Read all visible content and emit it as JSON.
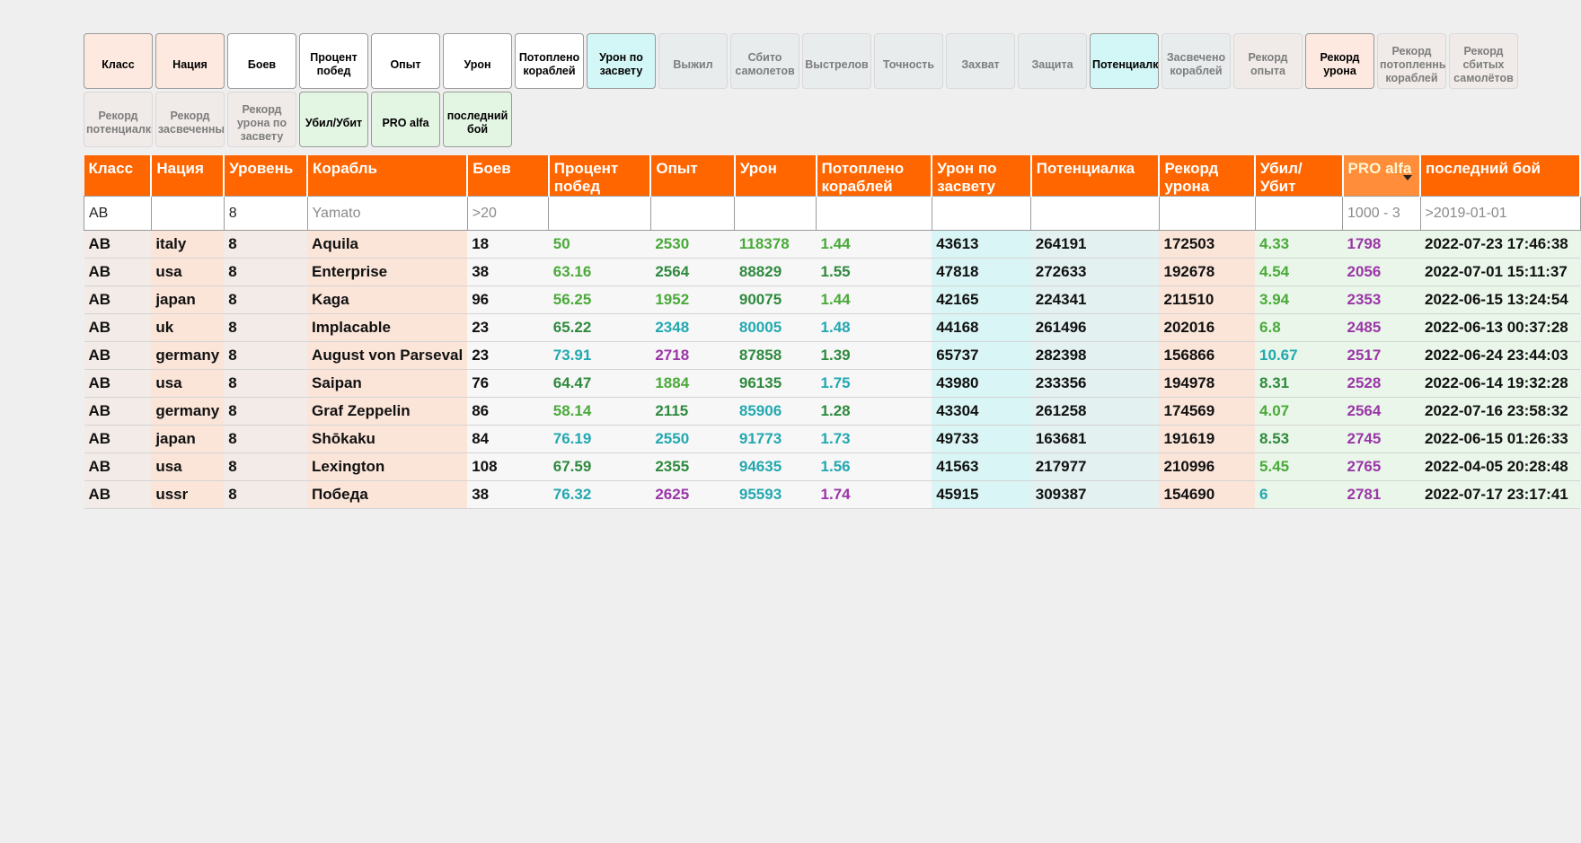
{
  "toggles": [
    {
      "label": "Класс",
      "on": true,
      "style": "peach"
    },
    {
      "label": "Нация",
      "on": true,
      "style": "peach"
    },
    {
      "label": "Боев",
      "on": true,
      "style": "white"
    },
    {
      "label": "Процент побед",
      "on": true,
      "style": "white"
    },
    {
      "label": "Опыт",
      "on": true,
      "style": "white"
    },
    {
      "label": "Урон",
      "on": true,
      "style": "white"
    },
    {
      "label": "Потоплено кораблей",
      "on": true,
      "style": "white"
    },
    {
      "label": "Урон по засвету",
      "on": true,
      "style": "cyan"
    },
    {
      "label": "Выжил",
      "on": false,
      "style": "off"
    },
    {
      "label": "Сбито самолетов",
      "on": false,
      "style": "off"
    },
    {
      "label": "Выстрелов",
      "on": false,
      "style": "off"
    },
    {
      "label": "Точность",
      "on": false,
      "style": "off"
    },
    {
      "label": "Захват",
      "on": false,
      "style": "off"
    },
    {
      "label": "Защита",
      "on": false,
      "style": "off"
    },
    {
      "label": "Потенциалка",
      "on": true,
      "style": "cyan"
    },
    {
      "label": "Засвечено кораблей",
      "on": false,
      "style": "off"
    },
    {
      "label": "Рекорд опыта",
      "on": false,
      "style": "offpeach"
    },
    {
      "label": "Рекорд урона",
      "on": true,
      "style": "peach"
    },
    {
      "label": "Рекорд потопленных кораблей",
      "on": false,
      "style": "offpeach"
    },
    {
      "label": "Рекорд сбитых самолётов",
      "on": false,
      "style": "offpeach"
    },
    {
      "label": "Рекорд потенциалки",
      "on": false,
      "style": "offpeach"
    },
    {
      "label": "Рекорд засвеченных",
      "on": false,
      "style": "offpeach"
    },
    {
      "label": "Рекорд урона по засвету",
      "on": false,
      "style": "offpeach"
    },
    {
      "label": "Убил/Убит",
      "on": true,
      "style": "green"
    },
    {
      "label": "PRO alfa",
      "on": true,
      "style": "green"
    },
    {
      "label": "последний бой",
      "on": true,
      "style": "green"
    }
  ],
  "columns": [
    {
      "key": "cls",
      "label": "Класс",
      "width": 75,
      "bg": "a"
    },
    {
      "key": "nation",
      "label": "Нация",
      "width": 76,
      "bg": "b"
    },
    {
      "key": "level",
      "label": "Уровень",
      "width": 93,
      "bg": "a"
    },
    {
      "key": "ship",
      "label": "Корабль",
      "width": 178,
      "bg": "b"
    },
    {
      "key": "battles",
      "label": "Боев",
      "width": 91,
      "bg": "w"
    },
    {
      "key": "winrate",
      "label": "Процент побед",
      "width": 114,
      "bg": "w"
    },
    {
      "key": "exp",
      "label": "Опыт",
      "width": 94,
      "bg": "w"
    },
    {
      "key": "dmg",
      "label": "Урон",
      "width": 91,
      "bg": "w"
    },
    {
      "key": "kills",
      "label": "Потоплено кораблей",
      "width": 129,
      "bg": "w"
    },
    {
      "key": "spot_dmg",
      "label": "Урон по засвету",
      "width": 111,
      "bg": "cy"
    },
    {
      "key": "potential",
      "label": "Потенциалка",
      "width": 143,
      "bg": "cy2"
    },
    {
      "key": "rec_dmg",
      "label": "Рекорд урона",
      "width": 107,
      "bg": "b"
    },
    {
      "key": "kd",
      "label": "Убил/ Убит",
      "width": 98,
      "bg": "gn"
    },
    {
      "key": "pr",
      "label": "PRO alfa",
      "width": 87,
      "bg": "gn",
      "sorted": true
    },
    {
      "key": "last",
      "label": "последний бой",
      "width": 178,
      "bg": "gn"
    }
  ],
  "filters": {
    "cls": {
      "value": "AB",
      "placeholder": ""
    },
    "nation": {
      "value": "",
      "placeholder": ""
    },
    "level": {
      "value": "8",
      "placeholder": ""
    },
    "ship": {
      "value": "",
      "placeholder": "Yamato"
    },
    "battles": {
      "value": "",
      "placeholder": ">20"
    },
    "winrate": {
      "value": "",
      "placeholder": ""
    },
    "exp": {
      "value": "",
      "placeholder": ""
    },
    "dmg": {
      "value": "",
      "placeholder": ""
    },
    "kills": {
      "value": "",
      "placeholder": ""
    },
    "spot_dmg": {
      "value": "",
      "placeholder": ""
    },
    "potential": {
      "value": "",
      "placeholder": ""
    },
    "rec_dmg": {
      "value": "",
      "placeholder": ""
    },
    "kd": {
      "value": "",
      "placeholder": ""
    },
    "pr": {
      "value": "",
      "placeholder": "1000 - 3"
    },
    "last": {
      "value": "",
      "placeholder": ">2019-01-01"
    }
  },
  "colors": {
    "green": "#4aaa3a",
    "dgreen": "#2f8a3f",
    "teal": "#22a8b0",
    "purple": "#9b36a8",
    "header": "#ff6600"
  },
  "rows": [
    {
      "cls": "AB",
      "nation": "italy",
      "level": "8",
      "ship": "Aquila",
      "battles": "18",
      "winrate": "50",
      "exp": "2530",
      "dmg": "118378",
      "kills": "1.44",
      "spot_dmg": "43613",
      "potential": "264191",
      "rec_dmg": "172503",
      "kd": "4.33",
      "pr": "1798",
      "last": "2022-07-23 17:46:38",
      "c": {
        "winrate": "green",
        "exp": "green",
        "dmg": "green",
        "kills": "green",
        "kd": "green",
        "pr": "purple"
      }
    },
    {
      "cls": "AB",
      "nation": "usa",
      "level": "8",
      "ship": "Enterprise",
      "battles": "38",
      "winrate": "63.16",
      "exp": "2564",
      "dmg": "88829",
      "kills": "1.55",
      "spot_dmg": "47818",
      "potential": "272633",
      "rec_dmg": "192678",
      "kd": "4.54",
      "pr": "2056",
      "last": "2022-07-01 15:11:37",
      "c": {
        "winrate": "green",
        "exp": "dgreen",
        "dmg": "dgreen",
        "kills": "dgreen",
        "kd": "green",
        "pr": "purple"
      }
    },
    {
      "cls": "AB",
      "nation": "japan",
      "level": "8",
      "ship": "Kaga",
      "battles": "96",
      "winrate": "56.25",
      "exp": "1952",
      "dmg": "90075",
      "kills": "1.44",
      "spot_dmg": "42165",
      "potential": "224341",
      "rec_dmg": "211510",
      "kd": "3.94",
      "pr": "2353",
      "last": "2022-06-15 13:24:54",
      "c": {
        "winrate": "green",
        "exp": "green",
        "dmg": "dgreen",
        "kills": "green",
        "kd": "green",
        "pr": "purple"
      }
    },
    {
      "cls": "AB",
      "nation": "uk",
      "level": "8",
      "ship": "Implacable",
      "battles": "23",
      "winrate": "65.22",
      "exp": "2348",
      "dmg": "80005",
      "kills": "1.48",
      "spot_dmg": "44168",
      "potential": "261496",
      "rec_dmg": "202016",
      "kd": "6.8",
      "pr": "2485",
      "last": "2022-06-13 00:37:28",
      "c": {
        "winrate": "dgreen",
        "exp": "teal",
        "dmg": "teal",
        "kills": "teal",
        "kd": "green",
        "pr": "purple"
      }
    },
    {
      "cls": "AB",
      "nation": "germany",
      "level": "8",
      "ship": "August von Parseval",
      "battles": "23",
      "winrate": "73.91",
      "exp": "2718",
      "dmg": "87858",
      "kills": "1.39",
      "spot_dmg": "65737",
      "potential": "282398",
      "rec_dmg": "156866",
      "kd": "10.67",
      "pr": "2517",
      "last": "2022-06-24 23:44:03",
      "c": {
        "winrate": "teal",
        "exp": "purple",
        "dmg": "dgreen",
        "kills": "dgreen",
        "kd": "teal",
        "pr": "purple"
      }
    },
    {
      "cls": "AB",
      "nation": "usa",
      "level": "8",
      "ship": "Saipan",
      "battles": "76",
      "winrate": "64.47",
      "exp": "1884",
      "dmg": "96135",
      "kills": "1.75",
      "spot_dmg": "43980",
      "potential": "233356",
      "rec_dmg": "194978",
      "kd": "8.31",
      "pr": "2528",
      "last": "2022-06-14 19:32:28",
      "c": {
        "winrate": "dgreen",
        "exp": "green",
        "dmg": "dgreen",
        "kills": "teal",
        "kd": "dgreen",
        "pr": "purple"
      }
    },
    {
      "cls": "AB",
      "nation": "germany",
      "level": "8",
      "ship": "Graf Zeppelin",
      "battles": "86",
      "winrate": "58.14",
      "exp": "2115",
      "dmg": "85906",
      "kills": "1.28",
      "spot_dmg": "43304",
      "potential": "261258",
      "rec_dmg": "174569",
      "kd": "4.07",
      "pr": "2564",
      "last": "2022-07-16 23:58:32",
      "c": {
        "winrate": "green",
        "exp": "dgreen",
        "dmg": "teal",
        "kills": "dgreen",
        "kd": "green",
        "pr": "purple"
      }
    },
    {
      "cls": "AB",
      "nation": "japan",
      "level": "8",
      "ship": "Shōkaku",
      "battles": "84",
      "winrate": "76.19",
      "exp": "2550",
      "dmg": "91773",
      "kills": "1.73",
      "spot_dmg": "49733",
      "potential": "163681",
      "rec_dmg": "191619",
      "kd": "8.53",
      "pr": "2745",
      "last": "2022-06-15 01:26:33",
      "c": {
        "winrate": "teal",
        "exp": "teal",
        "dmg": "teal",
        "kills": "teal",
        "kd": "dgreen",
        "pr": "purple"
      }
    },
    {
      "cls": "AB",
      "nation": "usa",
      "level": "8",
      "ship": "Lexington",
      "battles": "108",
      "winrate": "67.59",
      "exp": "2355",
      "dmg": "94635",
      "kills": "1.56",
      "spot_dmg": "41563",
      "potential": "217977",
      "rec_dmg": "210996",
      "kd": "5.45",
      "pr": "2765",
      "last": "2022-04-05 20:28:48",
      "c": {
        "winrate": "dgreen",
        "exp": "dgreen",
        "dmg": "teal",
        "kills": "teal",
        "kd": "green",
        "pr": "purple"
      }
    },
    {
      "cls": "AB",
      "nation": "ussr",
      "level": "8",
      "ship": "Победа",
      "battles": "38",
      "winrate": "76.32",
      "exp": "2625",
      "dmg": "95593",
      "kills": "1.74",
      "spot_dmg": "45915",
      "potential": "309387",
      "rec_dmg": "154690",
      "kd": "6",
      "pr": "2781",
      "last": "2022-07-17 23:17:41",
      "c": {
        "winrate": "teal",
        "exp": "purple",
        "dmg": "teal",
        "kills": "purple",
        "kd": "teal",
        "pr": "purple"
      }
    }
  ]
}
